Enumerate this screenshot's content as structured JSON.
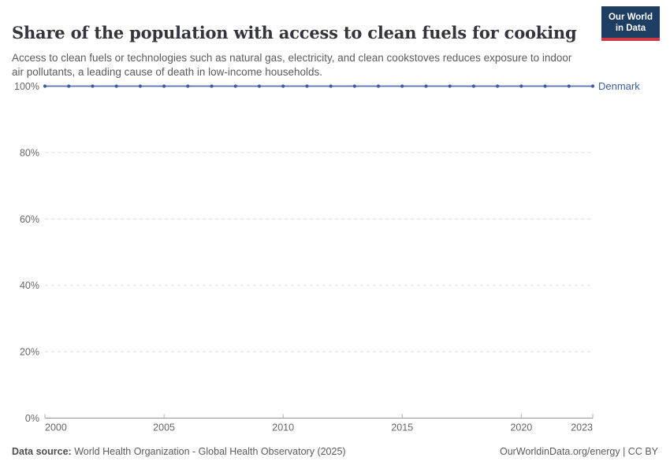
{
  "header": {
    "title": "Share of the population with access to clean fuels for cooking",
    "subtitle": "Access to clean fuels or technologies such as natural gas, electricity, and clean cookstoves reduces exposure to indoor air pollutants, a leading cause of death in low-income households.",
    "logo": {
      "line1": "Our World",
      "line2": "in Data",
      "bg_color": "#1d3d63",
      "accent_color": "#cc3b45"
    }
  },
  "chart_data": {
    "type": "line",
    "title": "Share of the population with access to clean fuels for cooking",
    "x": [
      2000,
      2001,
      2002,
      2003,
      2004,
      2005,
      2006,
      2007,
      2008,
      2009,
      2010,
      2011,
      2012,
      2013,
      2014,
      2015,
      2016,
      2017,
      2018,
      2019,
      2020,
      2021,
      2022,
      2023
    ],
    "series": [
      {
        "name": "Denmark",
        "color": "#5571ad",
        "marker_color": "#3d5a9e",
        "label_color": "#3d5b9e",
        "values": [
          100,
          100,
          100,
          100,
          100,
          100,
          100,
          100,
          100,
          100,
          100,
          100,
          100,
          100,
          100,
          100,
          100,
          100,
          100,
          100,
          100,
          100,
          100,
          100
        ]
      }
    ],
    "xlim": [
      2000,
      2023
    ],
    "ylim": [
      0,
      100
    ],
    "x_tick_values": [
      2000,
      2005,
      2010,
      2015,
      2020,
      2023
    ],
    "x_tick_labels": [
      "2000",
      "2005",
      "2010",
      "2015",
      "2020",
      "2023"
    ],
    "y_tick_values": [
      0,
      20,
      40,
      60,
      80,
      100
    ],
    "y_tick_labels": [
      "0%",
      "20%",
      "40%",
      "60%",
      "80%",
      "100%"
    ],
    "grid": "horizontal-dashed",
    "gridline_color": "#dcdcdc",
    "axis_color": "#949494",
    "legend_position": "end-of-line"
  },
  "footer": {
    "data_source_label": "Data source:",
    "data_source_value": " World Health Organization - Global Health Observatory (2025)",
    "attribution": "OurWorldinData.org/energy | CC BY"
  }
}
